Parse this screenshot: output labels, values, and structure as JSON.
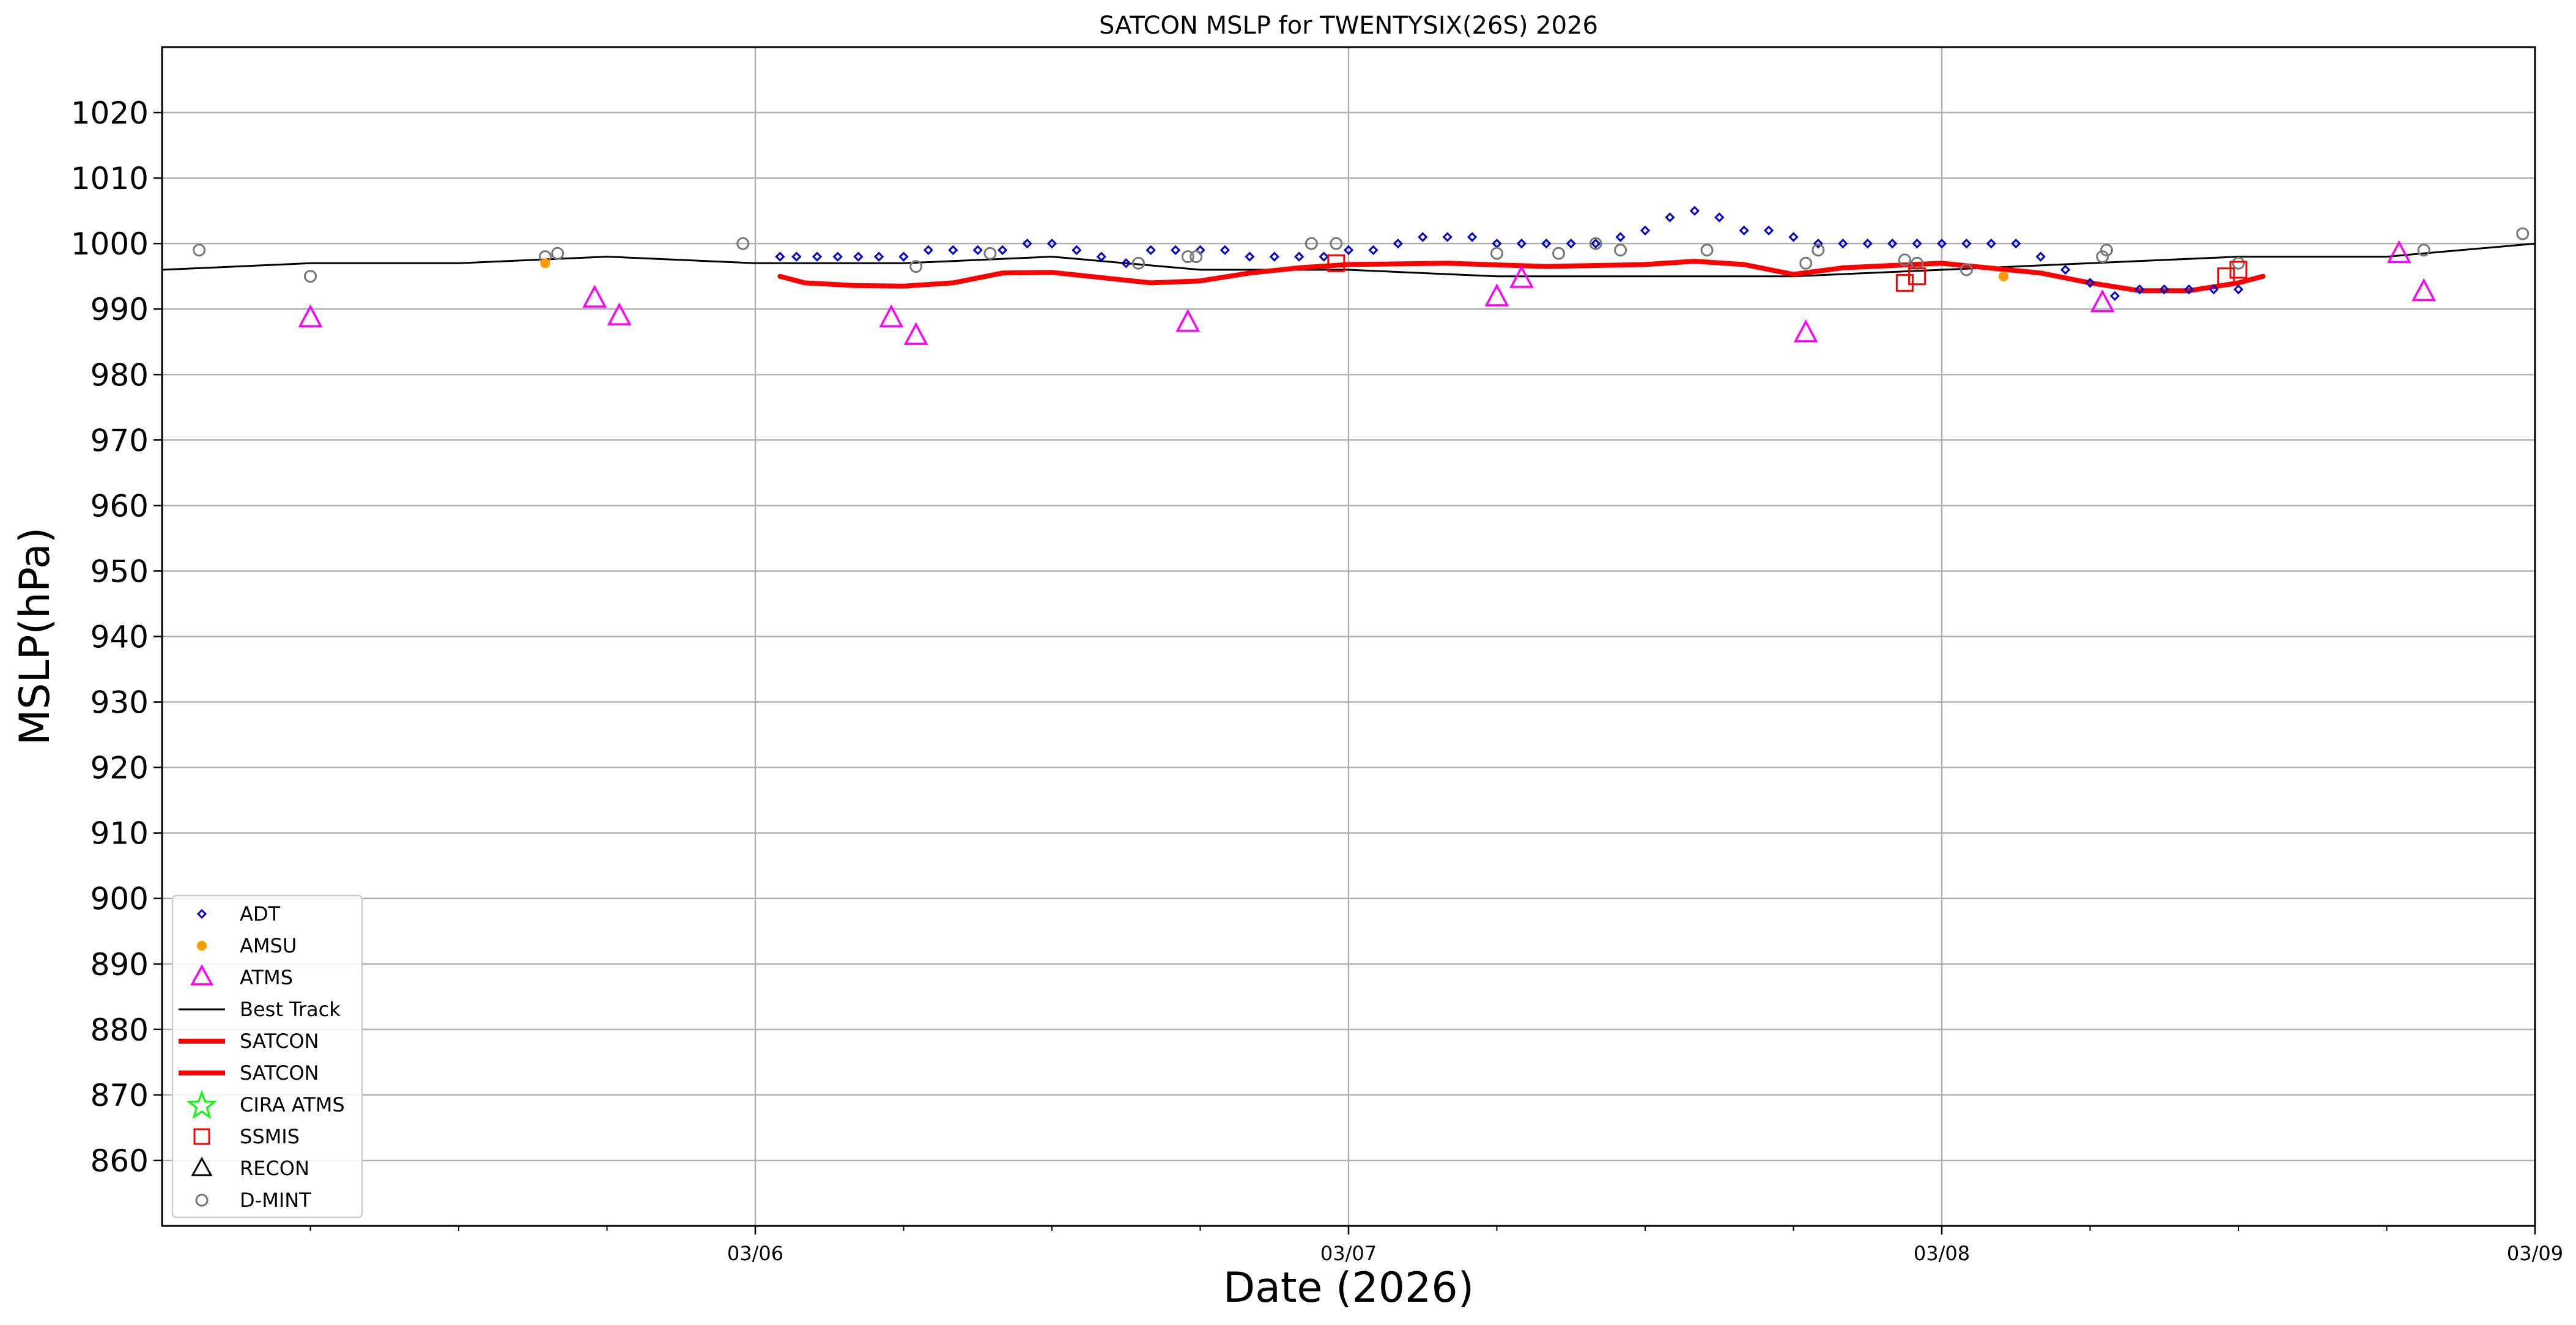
{
  "chart_data": {
    "type": "scatter",
    "title": "SATCON MSLP for TWENTYSIX(26S) 2026",
    "xlabel": "Date (2026)",
    "ylabel": "MSLP(hPa)",
    "xlim": [
      "2026-03-05 00:00",
      "2026-03-09 00:00"
    ],
    "ylim": [
      850,
      1030
    ],
    "grid": true,
    "legend_position": "lower-left",
    "yticks": [
      860,
      870,
      880,
      890,
      900,
      910,
      920,
      930,
      940,
      950,
      960,
      970,
      980,
      990,
      1000,
      1010,
      1020
    ],
    "xticks": [
      {
        "label": "03/06",
        "date": "2026-03-06 00:00"
      },
      {
        "label": "03/07",
        "date": "2026-03-07 00:00"
      },
      {
        "label": "03/08",
        "date": "2026-03-08 00:00"
      },
      {
        "label": "03/09",
        "date": "2026-03-09 00:00"
      }
    ],
    "minor_xticks": [
      "2026-03-05 06:00",
      "2026-03-05 12:00",
      "2026-03-05 18:00",
      "2026-03-06 06:00",
      "2026-03-06 12:00",
      "2026-03-06 18:00",
      "2026-03-07 06:00",
      "2026-03-07 12:00",
      "2026-03-07 18:00",
      "2026-03-08 06:00",
      "2026-03-08 12:00",
      "2026-03-08 18:00"
    ],
    "colors": {
      "adt": "#0000cc",
      "amsu": "#ff9900",
      "atms": "#ff00ff",
      "best_track": "#000000",
      "satcon": "#ff0000",
      "cira_atms": "#00ff00",
      "ssmis": "#ff0000",
      "recon": "#000000",
      "dmint": "#777777"
    },
    "legend": [
      "ADT",
      "AMSU",
      "ATMS",
      "Best Track",
      "SATCON",
      "SATCON",
      "CIRA ATMS",
      "SSMIS",
      "RECON",
      "D-MINT"
    ],
    "series": {
      "best_track": [
        {
          "x": "2026-03-05 00:00",
          "y": 996
        },
        {
          "x": "2026-03-05 06:00",
          "y": 997
        },
        {
          "x": "2026-03-05 12:00",
          "y": 997
        },
        {
          "x": "2026-03-05 18:00",
          "y": 998
        },
        {
          "x": "2026-03-06 00:00",
          "y": 997
        },
        {
          "x": "2026-03-06 06:00",
          "y": 997
        },
        {
          "x": "2026-03-06 12:00",
          "y": 998
        },
        {
          "x": "2026-03-06 18:00",
          "y": 996
        },
        {
          "x": "2026-03-07 00:00",
          "y": 996
        },
        {
          "x": "2026-03-07 06:00",
          "y": 995
        },
        {
          "x": "2026-03-07 12:00",
          "y": 995
        },
        {
          "x": "2026-03-07 18:00",
          "y": 995
        },
        {
          "x": "2026-03-08 00:00",
          "y": 996
        },
        {
          "x": "2026-03-08 06:00",
          "y": 997
        },
        {
          "x": "2026-03-08 12:00",
          "y": 998
        },
        {
          "x": "2026-03-08 18:00",
          "y": 998
        },
        {
          "x": "2026-03-09 00:00",
          "y": 1000
        }
      ],
      "satcon": [
        {
          "x": "2026-03-06 01:00",
          "y": 995
        },
        {
          "x": "2026-03-06 02:00",
          "y": 994
        },
        {
          "x": "2026-03-06 04:00",
          "y": 993.6
        },
        {
          "x": "2026-03-06 06:00",
          "y": 993.5
        },
        {
          "x": "2026-03-06 08:00",
          "y": 994
        },
        {
          "x": "2026-03-06 10:00",
          "y": 995.5
        },
        {
          "x": "2026-03-06 12:00",
          "y": 995.6
        },
        {
          "x": "2026-03-06 14:00",
          "y": 994.8
        },
        {
          "x": "2026-03-06 16:00",
          "y": 994
        },
        {
          "x": "2026-03-06 18:00",
          "y": 994.3
        },
        {
          "x": "2026-03-06 20:00",
          "y": 995.5
        },
        {
          "x": "2026-03-06 22:00",
          "y": 996.3
        },
        {
          "x": "2026-03-07 00:00",
          "y": 996.8
        },
        {
          "x": "2026-03-07 04:00",
          "y": 997
        },
        {
          "x": "2026-03-07 08:00",
          "y": 996.5
        },
        {
          "x": "2026-03-07 12:00",
          "y": 996.8
        },
        {
          "x": "2026-03-07 14:00",
          "y": 997.3
        },
        {
          "x": "2026-03-07 16:00",
          "y": 996.8
        },
        {
          "x": "2026-03-07 18:00",
          "y": 995.3
        },
        {
          "x": "2026-03-07 20:00",
          "y": 996.3
        },
        {
          "x": "2026-03-08 00:00",
          "y": 997
        },
        {
          "x": "2026-03-08 04:00",
          "y": 995.5
        },
        {
          "x": "2026-03-08 06:00",
          "y": 994
        },
        {
          "x": "2026-03-08 08:00",
          "y": 992.8
        },
        {
          "x": "2026-03-08 10:00",
          "y": 992.8
        },
        {
          "x": "2026-03-08 12:00",
          "y": 994
        },
        {
          "x": "2026-03-08 13:00",
          "y": 995
        }
      ],
      "adt": [
        {
          "x": "2026-03-06 01:00",
          "y": 998
        },
        {
          "x": "2026-03-06 01:40",
          "y": 998
        },
        {
          "x": "2026-03-06 02:30",
          "y": 998
        },
        {
          "x": "2026-03-06 03:20",
          "y": 998
        },
        {
          "x": "2026-03-06 04:10",
          "y": 998
        },
        {
          "x": "2026-03-06 05:00",
          "y": 998
        },
        {
          "x": "2026-03-06 06:00",
          "y": 998
        },
        {
          "x": "2026-03-06 07:00",
          "y": 999
        },
        {
          "x": "2026-03-06 08:00",
          "y": 999
        },
        {
          "x": "2026-03-06 09:00",
          "y": 999
        },
        {
          "x": "2026-03-06 10:00",
          "y": 999
        },
        {
          "x": "2026-03-06 11:00",
          "y": 1000
        },
        {
          "x": "2026-03-06 12:00",
          "y": 1000
        },
        {
          "x": "2026-03-06 13:00",
          "y": 999
        },
        {
          "x": "2026-03-06 14:00",
          "y": 998
        },
        {
          "x": "2026-03-06 15:00",
          "y": 997
        },
        {
          "x": "2026-03-06 16:00",
          "y": 999
        },
        {
          "x": "2026-03-06 17:00",
          "y": 999
        },
        {
          "x": "2026-03-06 18:00",
          "y": 999
        },
        {
          "x": "2026-03-06 19:00",
          "y": 999
        },
        {
          "x": "2026-03-06 20:00",
          "y": 998
        },
        {
          "x": "2026-03-06 21:00",
          "y": 998
        },
        {
          "x": "2026-03-06 22:00",
          "y": 998
        },
        {
          "x": "2026-03-06 23:00",
          "y": 998
        },
        {
          "x": "2026-03-07 00:00",
          "y": 999
        },
        {
          "x": "2026-03-07 01:00",
          "y": 999
        },
        {
          "x": "2026-03-07 02:00",
          "y": 1000
        },
        {
          "x": "2026-03-07 03:00",
          "y": 1001
        },
        {
          "x": "2026-03-07 04:00",
          "y": 1001
        },
        {
          "x": "2026-03-07 05:00",
          "y": 1001
        },
        {
          "x": "2026-03-07 06:00",
          "y": 1000
        },
        {
          "x": "2026-03-07 07:00",
          "y": 1000
        },
        {
          "x": "2026-03-07 08:00",
          "y": 1000
        },
        {
          "x": "2026-03-07 09:00",
          "y": 1000
        },
        {
          "x": "2026-03-07 10:00",
          "y": 1000
        },
        {
          "x": "2026-03-07 11:00",
          "y": 1001
        },
        {
          "x": "2026-03-07 12:00",
          "y": 1002
        },
        {
          "x": "2026-03-07 13:00",
          "y": 1004
        },
        {
          "x": "2026-03-07 14:00",
          "y": 1005
        },
        {
          "x": "2026-03-07 15:00",
          "y": 1004
        },
        {
          "x": "2026-03-07 16:00",
          "y": 1002
        },
        {
          "x": "2026-03-07 17:00",
          "y": 1002
        },
        {
          "x": "2026-03-07 18:00",
          "y": 1001
        },
        {
          "x": "2026-03-07 19:00",
          "y": 1000
        },
        {
          "x": "2026-03-07 20:00",
          "y": 1000
        },
        {
          "x": "2026-03-07 21:00",
          "y": 1000
        },
        {
          "x": "2026-03-07 22:00",
          "y": 1000
        },
        {
          "x": "2026-03-07 23:00",
          "y": 1000
        },
        {
          "x": "2026-03-08 00:00",
          "y": 1000
        },
        {
          "x": "2026-03-08 01:00",
          "y": 1000
        },
        {
          "x": "2026-03-08 02:00",
          "y": 1000
        },
        {
          "x": "2026-03-08 03:00",
          "y": 1000
        },
        {
          "x": "2026-03-08 04:00",
          "y": 998
        },
        {
          "x": "2026-03-08 05:00",
          "y": 996
        },
        {
          "x": "2026-03-08 06:00",
          "y": 994
        },
        {
          "x": "2026-03-08 07:00",
          "y": 992
        },
        {
          "x": "2026-03-08 08:00",
          "y": 993
        },
        {
          "x": "2026-03-08 09:00",
          "y": 993
        },
        {
          "x": "2026-03-08 10:00",
          "y": 993
        },
        {
          "x": "2026-03-08 11:00",
          "y": 993
        },
        {
          "x": "2026-03-08 12:00",
          "y": 993
        }
      ],
      "amsu": [
        {
          "x": "2026-03-05 15:30",
          "y": 997
        },
        {
          "x": "2026-03-08 02:30",
          "y": 995
        }
      ],
      "atms": [
        {
          "x": "2026-03-05 06:00",
          "y": 988.5
        },
        {
          "x": "2026-03-05 17:30",
          "y": 991.5
        },
        {
          "x": "2026-03-05 18:30",
          "y": 988.8
        },
        {
          "x": "2026-03-06 05:30",
          "y": 988.5
        },
        {
          "x": "2026-03-06 06:30",
          "y": 985.8
        },
        {
          "x": "2026-03-06 17:30",
          "y": 987.8
        },
        {
          "x": "2026-03-07 06:00",
          "y": 991.7
        },
        {
          "x": "2026-03-07 07:00",
          "y": 994.5
        },
        {
          "x": "2026-03-07 18:30",
          "y": 986.2
        },
        {
          "x": "2026-03-08 06:30",
          "y": 990.8
        },
        {
          "x": "2026-03-08 18:30",
          "y": 998.3
        },
        {
          "x": "2026-03-08 19:30",
          "y": 992.5
        }
      ],
      "ssmis": [
        {
          "x": "2026-03-06 23:30",
          "y": 997
        },
        {
          "x": "2026-03-07 22:30",
          "y": 994
        },
        {
          "x": "2026-03-07 23:00",
          "y": 995
        },
        {
          "x": "2026-03-08 11:30",
          "y": 995
        },
        {
          "x": "2026-03-08 12:00",
          "y": 996
        }
      ],
      "cira_atms": [],
      "recon": [],
      "dmint": [
        {
          "x": "2026-03-05 01:30",
          "y": 999
        },
        {
          "x": "2026-03-05 06:00",
          "y": 995
        },
        {
          "x": "2026-03-05 15:30",
          "y": 998
        },
        {
          "x": "2026-03-05 16:00",
          "y": 998.5
        },
        {
          "x": "2026-03-05 23:30",
          "y": 1000
        },
        {
          "x": "2026-03-06 06:30",
          "y": 996.5
        },
        {
          "x": "2026-03-06 09:30",
          "y": 998.5
        },
        {
          "x": "2026-03-06 15:30",
          "y": 997
        },
        {
          "x": "2026-03-06 17:30",
          "y": 998
        },
        {
          "x": "2026-03-06 17:50",
          "y": 998
        },
        {
          "x": "2026-03-06 22:30",
          "y": 1000
        },
        {
          "x": "2026-03-06 23:30",
          "y": 1000
        },
        {
          "x": "2026-03-07 06:00",
          "y": 998.5
        },
        {
          "x": "2026-03-07 08:30",
          "y": 998.5
        },
        {
          "x": "2026-03-07 10:00",
          "y": 1000
        },
        {
          "x": "2026-03-07 11:00",
          "y": 999
        },
        {
          "x": "2026-03-07 14:30",
          "y": 999
        },
        {
          "x": "2026-03-07 18:30",
          "y": 997
        },
        {
          "x": "2026-03-07 19:00",
          "y": 999
        },
        {
          "x": "2026-03-07 22:30",
          "y": 997.5
        },
        {
          "x": "2026-03-07 23:00",
          "y": 997
        },
        {
          "x": "2026-03-08 01:00",
          "y": 996
        },
        {
          "x": "2026-03-08 06:30",
          "y": 998
        },
        {
          "x": "2026-03-08 06:40",
          "y": 999
        },
        {
          "x": "2026-03-08 12:00",
          "y": 997
        },
        {
          "x": "2026-03-08 19:30",
          "y": 999
        },
        {
          "x": "2026-03-08 23:30",
          "y": 1001.5
        }
      ]
    }
  }
}
